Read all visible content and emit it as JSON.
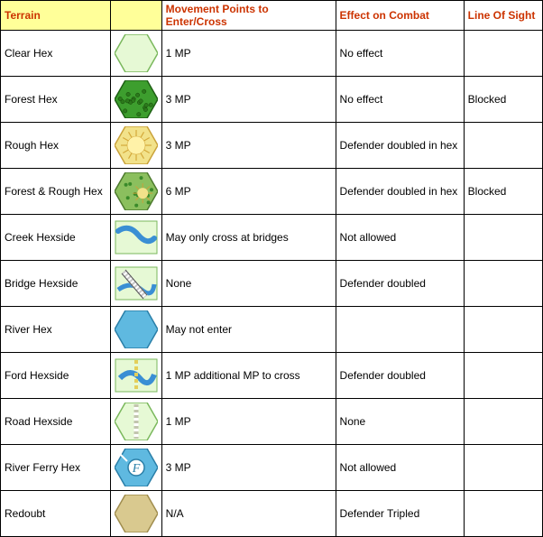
{
  "columns": {
    "terrain": "Terrain",
    "icon": "",
    "mp": "Movement Points to Enter/Cross",
    "combat": "Effect on Combat",
    "los": "Line Of Sight"
  },
  "header_color": "#cc3300",
  "header_bg": "#ffff99",
  "rows": [
    {
      "terrain": "Clear Hex",
      "mp": "1 MP",
      "combat": "No effect",
      "los": "",
      "icon": "clear"
    },
    {
      "terrain": "Forest Hex",
      "mp": "3 MP",
      "combat": "No effect",
      "los": "Blocked",
      "icon": "forest"
    },
    {
      "terrain": "Rough Hex",
      "mp": "3 MP",
      "combat": " Defender doubled in hex",
      "los": "",
      "icon": "rough"
    },
    {
      "terrain": "Forest & Rough Hex",
      "mp": "6 MP",
      "combat": " Defender doubled in hex",
      "los": "Blocked",
      "icon": "forest-rough"
    },
    {
      "terrain": "Creek Hexside",
      "mp": "May only cross at bridges",
      "combat": " Not allowed",
      "los": "",
      "icon": "creek"
    },
    {
      "terrain": "Bridge Hexside",
      "mp": "None",
      "combat": "Defender doubled",
      "los": "",
      "icon": "bridge"
    },
    {
      "terrain": "River Hex",
      "mp": "May not enter",
      "combat": "",
      "los": "",
      "icon": "river"
    },
    {
      "terrain": "Ford Hexside",
      "mp": "1 MP additional MP to cross",
      "combat": " Defender doubled",
      "los": "",
      "icon": "ford"
    },
    {
      "terrain": "Road Hexside",
      "mp": "1 MP",
      "combat": "None",
      "los": "",
      "icon": "road"
    },
    {
      "terrain": "River Ferry Hex",
      "mp": "3 MP",
      "combat": " Not allowed",
      "los": "",
      "icon": "ferry"
    },
    {
      "terrain": "Redoubt",
      "mp": "N/A",
      "combat": " Defender Tripled",
      "los": "",
      "icon": "redoubt"
    }
  ],
  "icons": {
    "hex_w": 48,
    "hex_h": 42,
    "clear": {
      "fill": "#e6f9d5",
      "stroke": "#7ab85c"
    },
    "forest": {
      "fill": "#3d9e2e",
      "stroke": "#1e5f14",
      "pattern": "forest"
    },
    "rough": {
      "fill": "#f2e28a",
      "stroke": "#caa23a",
      "pattern": "rough"
    },
    "forest-rough": {
      "fill": "#8bbf5e",
      "stroke": "#4d7a2e",
      "pattern": "forest-rough"
    },
    "creek": {
      "fill": "#e6f9d5",
      "stroke": "#7ab85c",
      "overlay": "creek",
      "square": true
    },
    "bridge": {
      "fill": "#e6f9d5",
      "stroke": "#7ab85c",
      "overlay": "bridge",
      "square": true
    },
    "river": {
      "fill": "#5fb9e0",
      "stroke": "#2a7fa8"
    },
    "ford": {
      "fill": "#e6f9d5",
      "stroke": "#7ab85c",
      "overlay": "ford",
      "square": true
    },
    "road": {
      "fill": "#e6f9d5",
      "stroke": "#7ab85c",
      "overlay": "road"
    },
    "ferry": {
      "fill": "#5fb9e0",
      "stroke": "#2a7fa8",
      "overlay": "ferry"
    },
    "redoubt": {
      "fill": "#d9c98f",
      "stroke": "#a08d4e"
    }
  }
}
